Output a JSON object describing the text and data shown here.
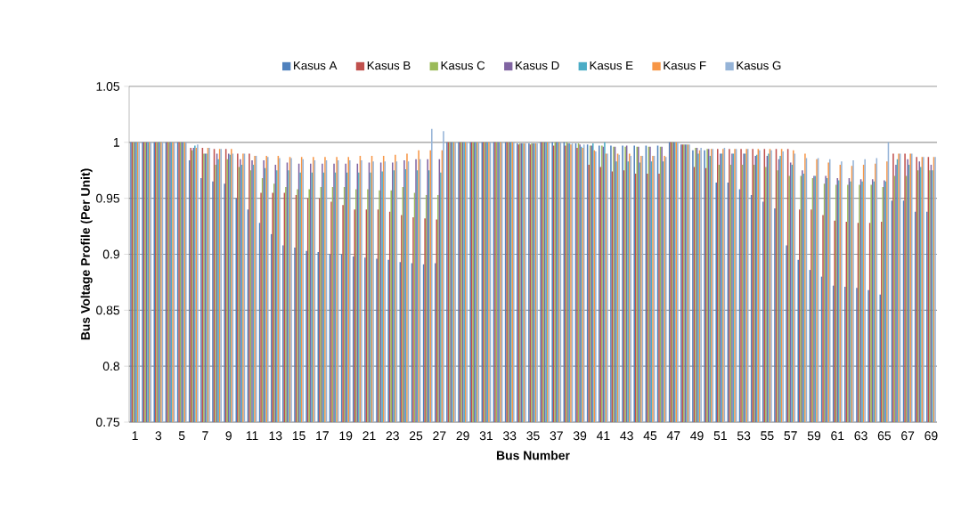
{
  "chart_data": {
    "type": "bar",
    "xlabel": "Bus Number",
    "ylabel": "Bus Voltage Profile (Per Unit)",
    "categories": [
      "1",
      null,
      "3",
      null,
      "5",
      null,
      "7",
      null,
      "9",
      null,
      "11",
      null,
      "13",
      null,
      "15",
      null,
      "17",
      null,
      "19",
      null,
      "21",
      null,
      "23",
      null,
      "25",
      null,
      "27",
      null,
      "29",
      null,
      "31",
      null,
      "33",
      null,
      "35",
      null,
      "37",
      null,
      "39",
      null,
      "41",
      null,
      "43",
      null,
      "45",
      null,
      "47",
      null,
      "49",
      null,
      "51",
      null,
      "53",
      null,
      "55",
      null,
      "57",
      null,
      "59",
      null,
      "61",
      null,
      "63",
      null,
      "65",
      null,
      "67",
      null,
      "69"
    ],
    "series": [
      {
        "name": "Kasus A",
        "color": "#4f81bd",
        "values": [
          1,
          1,
          1,
          1,
          1,
          0.984,
          0.968,
          0.965,
          0.963,
          0.95,
          0.94,
          0.928,
          0.918,
          0.908,
          0.906,
          0.903,
          0.902,
          0.9,
          0.9,
          0.898,
          0.897,
          0.896,
          0.895,
          0.893,
          0.892,
          0.891,
          0.892,
          1,
          1,
          1,
          1,
          1,
          1,
          0.999,
          0.999,
          1,
          1,
          1,
          0.999,
          0.998,
          0.997,
          0.997,
          0.997,
          0.997,
          0.997,
          0.997,
          1,
          0.998,
          0.993,
          0.993,
          0.964,
          0.964,
          0.958,
          0.953,
          0.947,
          0.941,
          0.908,
          0.895,
          0.886,
          0.88,
          0.872,
          0.871,
          0.87,
          0.868,
          0.864,
          0.948,
          0.948,
          0.938,
          0.938
        ]
      },
      {
        "name": "Kasus B",
        "color": "#c0504d",
        "values": [
          1,
          1,
          1,
          1,
          1,
          0.995,
          0.995,
          0.994,
          0.994,
          0.99,
          0.99,
          0.955,
          0.955,
          0.955,
          0.953,
          0.95,
          0.95,
          0.947,
          0.944,
          0.94,
          0.94,
          0.94,
          0.938,
          0.935,
          0.933,
          0.932,
          0.931,
          1,
          1,
          1,
          1,
          1,
          1,
          0.998,
          0.998,
          1,
          0.997,
          0.997,
          0.995,
          0.98,
          0.978,
          0.974,
          0.975,
          0.972,
          0.972,
          0.972,
          1,
          0.998,
          0.978,
          0.977,
          0.994,
          0.994,
          0.994,
          0.994,
          0.994,
          0.994,
          0.994,
          0.94,
          0.94,
          0.935,
          0.93,
          0.929,
          0.928,
          0.928,
          0.929,
          0.99,
          0.99,
          0.987,
          0.987
        ]
      },
      {
        "name": "Kasus C",
        "color": "#9bbb59",
        "values": [
          1,
          1,
          1,
          1,
          1,
          0.993,
          0.99,
          0.98,
          0.985,
          0.978,
          0.975,
          0.968,
          0.963,
          0.96,
          0.958,
          0.958,
          0.96,
          0.96,
          0.96,
          0.958,
          0.958,
          0.957,
          0.957,
          0.96,
          0.955,
          0.953,
          0.953,
          1,
          1,
          1,
          1,
          1,
          1,
          0.999,
          0.999,
          1,
          1,
          1,
          0.999,
          0.997,
          0.997,
          0.996,
          0.996,
          0.996,
          0.996,
          0.996,
          1,
          0.998,
          0.995,
          0.994,
          0.98,
          0.98,
          0.98,
          0.98,
          0.978,
          0.975,
          0.97,
          0.97,
          0.968,
          0.963,
          0.962,
          0.962,
          0.962,
          0.962,
          0.96,
          0.97,
          0.97,
          0.975,
          0.975
        ]
      },
      {
        "name": "Kasus D",
        "color": "#8064a2",
        "values": [
          1,
          1,
          1,
          1,
          1,
          0.995,
          0.99,
          0.99,
          0.99,
          0.985,
          0.984,
          0.984,
          0.98,
          0.982,
          0.981,
          0.981,
          0.981,
          0.981,
          0.981,
          0.981,
          0.982,
          0.982,
          0.982,
          0.984,
          0.985,
          0.985,
          0.985,
          1,
          1,
          1,
          1,
          1,
          1,
          0.999,
          0.999,
          1,
          1,
          0.999,
          0.998,
          0.997,
          0.996,
          0.996,
          0.997,
          0.996,
          0.996,
          0.996,
          1,
          0.998,
          0.995,
          0.994,
          0.99,
          0.99,
          0.99,
          0.988,
          0.988,
          0.985,
          0.982,
          0.975,
          0.97,
          0.97,
          0.968,
          0.968,
          0.967,
          0.967,
          0.966,
          0.98,
          0.985,
          0.983,
          0.98
        ]
      },
      {
        "name": "Kasus E",
        "color": "#4bacc6",
        "values": [
          1,
          1,
          1,
          1,
          1,
          0.997,
          0.99,
          0.985,
          0.989,
          0.98,
          0.98,
          0.977,
          0.975,
          0.975,
          0.973,
          0.973,
          0.973,
          0.973,
          0.973,
          0.973,
          0.973,
          0.974,
          0.975,
          0.976,
          0.975,
          0.975,
          0.973,
          1,
          1,
          1,
          1,
          1,
          1,
          0.999,
          0.999,
          1,
          1,
          0.999,
          0.996,
          0.999,
          1,
          0.983,
          0.983,
          0.982,
          0.983,
          0.983,
          1,
          0.998,
          0.99,
          0.988,
          0.99,
          0.99,
          0.99,
          0.989,
          0.99,
          0.988,
          0.98,
          0.972,
          0.97,
          0.968,
          0.966,
          0.965,
          0.965,
          0.965,
          0.965,
          0.985,
          0.98,
          0.978,
          0.975
        ]
      },
      {
        "name": "Kasus F",
        "color": "#f79646",
        "values": [
          1,
          1,
          1,
          1,
          1,
          0.995,
          0.995,
          0.994,
          0.994,
          0.99,
          0.988,
          0.988,
          0.988,
          0.987,
          0.987,
          0.987,
          0.987,
          0.987,
          0.987,
          0.988,
          0.988,
          0.988,
          0.989,
          0.99,
          0.993,
          0.993,
          0.993,
          1,
          1,
          1,
          1,
          1,
          1,
          0.999,
          0.999,
          1,
          1,
          0.998,
          0.995,
          0.993,
          0.99,
          0.99,
          0.99,
          0.988,
          0.988,
          0.988,
          1,
          0.998,
          0.993,
          0.994,
          0.994,
          0.994,
          0.994,
          0.994,
          0.994,
          0.994,
          0.993,
          0.99,
          0.985,
          0.982,
          0.98,
          0.979,
          0.98,
          0.981,
          0.983,
          0.99,
          0.99,
          0.987,
          0.987
        ]
      },
      {
        "name": "Kasus G",
        "color": "#95b3d7",
        "values": [
          1,
          1,
          1,
          1,
          1,
          0.998,
          0.995,
          0.994,
          0.99,
          0.99,
          0.988,
          0.987,
          0.986,
          0.986,
          0.985,
          0.984,
          0.984,
          0.984,
          0.984,
          0.984,
          0.983,
          0.983,
          0.983,
          0.983,
          0.985,
          1.012,
          1.01,
          1,
          1,
          1,
          1,
          1,
          1,
          0.999,
          0.999,
          1,
          1,
          0.999,
          0.998,
          0.992,
          0.99,
          0.989,
          0.988,
          0.988,
          0.988,
          0.987,
          1,
          0.998,
          0.995,
          0.994,
          0.995,
          0.994,
          0.994,
          0.993,
          0.993,
          0.992,
          0.99,
          0.986,
          0.986,
          0.985,
          0.983,
          0.984,
          0.985,
          0.986,
          1,
          0.99,
          0.99,
          0.987,
          0.987
        ]
      }
    ],
    "ylim": [
      0.75,
      1.05
    ],
    "yticks": [
      0.75,
      0.8,
      0.85,
      0.9,
      0.95,
      1,
      1.05
    ],
    "grid": "y",
    "legend": "top"
  }
}
